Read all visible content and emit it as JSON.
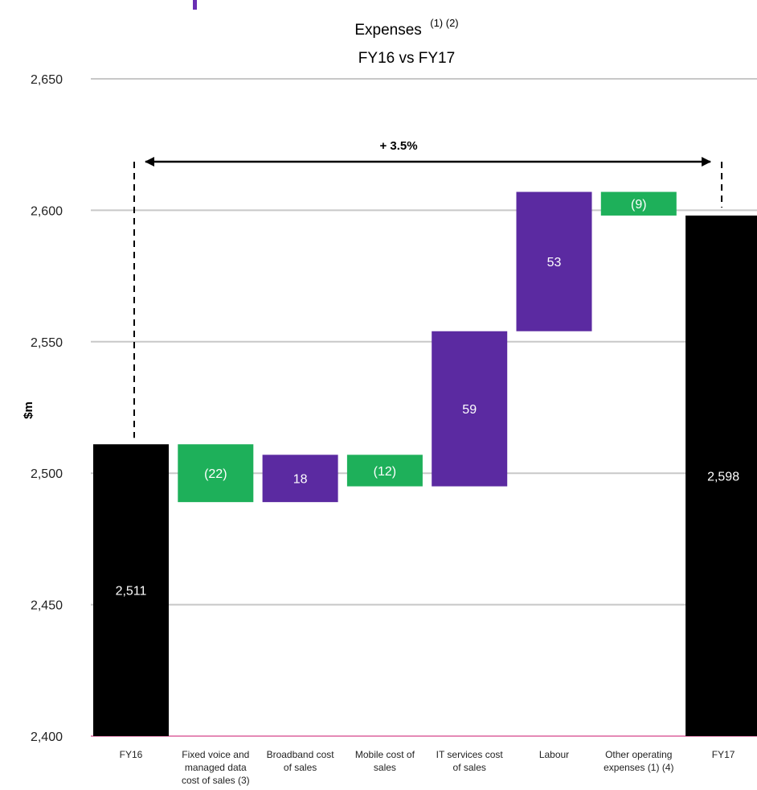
{
  "chart_data": {
    "type": "waterfall",
    "title": "Expenses",
    "title_superscript": "(1) (2)",
    "subtitle": "FY16 vs FY17",
    "ylabel": "$m",
    "ylim": [
      2400,
      2650
    ],
    "yticks": [
      "2,400",
      "2,450",
      "2,500",
      "2,550",
      "2,600",
      "2,650"
    ],
    "grid": true,
    "annotation": "+ 3.5%",
    "colors": {
      "total": "#000000",
      "increase": "#5b2aa1",
      "decrease": "#1eb05a",
      "grid": "#c8c8c8",
      "baseline": "#e58ab6",
      "accent": "#6a2fb3"
    },
    "categories": [
      [
        "FY16"
      ],
      [
        "Fixed voice and",
        "managed data",
        "cost of sales (3)"
      ],
      [
        "Broadband cost",
        "of sales"
      ],
      [
        "Mobile cost of",
        "sales"
      ],
      [
        "IT services cost",
        "of sales"
      ],
      [
        "Labour"
      ],
      [
        "Other operating",
        "expenses (1) (4)"
      ],
      [
        "FY17"
      ]
    ],
    "bars": [
      {
        "kind": "total",
        "start": 2400,
        "end": 2511,
        "label": "2,511"
      },
      {
        "kind": "decrease",
        "start": 2511,
        "end": 2489,
        "label": "(22)"
      },
      {
        "kind": "increase",
        "start": 2489,
        "end": 2507,
        "label": "18"
      },
      {
        "kind": "decrease",
        "start": 2507,
        "end": 2495,
        "label": "(12)"
      },
      {
        "kind": "increase",
        "start": 2495,
        "end": 2554,
        "label": "59"
      },
      {
        "kind": "increase",
        "start": 2554,
        "end": 2607,
        "label": "53"
      },
      {
        "kind": "decrease",
        "start": 2607,
        "end": 2598,
        "label": "(9)"
      },
      {
        "kind": "total",
        "start": 2400,
        "end": 2598,
        "label": "2,598"
      }
    ]
  }
}
